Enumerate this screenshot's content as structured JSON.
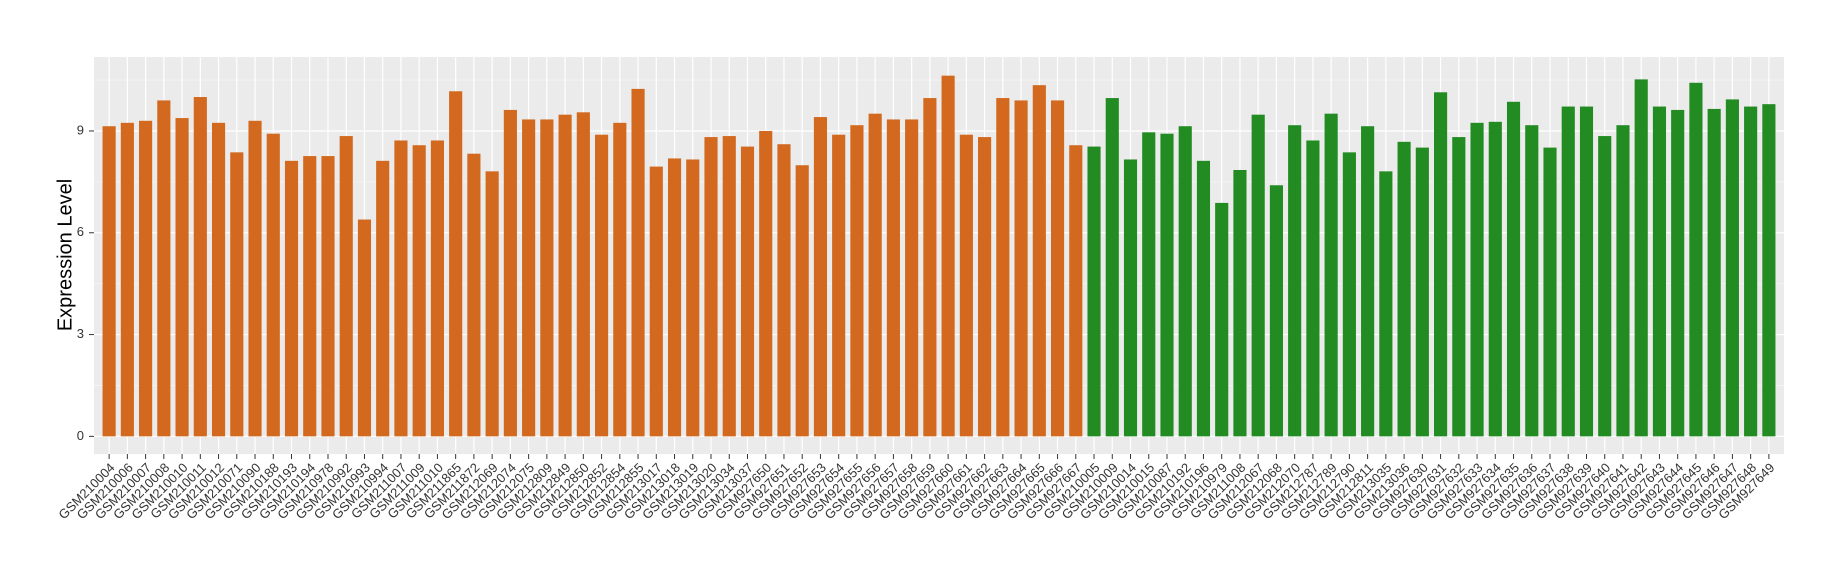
{
  "chart_data": {
    "type": "bar",
    "y_label": "Expression Level",
    "categories": [
      "GSM210004",
      "GSM210006",
      "GSM210007",
      "GSM210008",
      "GSM210010",
      "GSM210011",
      "GSM210012",
      "GSM210071",
      "GSM210090",
      "GSM210188",
      "GSM210193",
      "GSM210194",
      "GSM210978",
      "GSM210992",
      "GSM210993",
      "GSM210994",
      "GSM211007",
      "GSM211009",
      "GSM211010",
      "GSM211865",
      "GSM211872",
      "GSM212069",
      "GSM212074",
      "GSM212075",
      "GSM212809",
      "GSM212849",
      "GSM212850",
      "GSM212852",
      "GSM212854",
      "GSM212855",
      "GSM213017",
      "GSM213018",
      "GSM213019",
      "GSM213020",
      "GSM213034",
      "GSM213037",
      "GSM927650",
      "GSM927651",
      "GSM927652",
      "GSM927653",
      "GSM927654",
      "GSM927655",
      "GSM927656",
      "GSM927657",
      "GSM927658",
      "GSM927659",
      "GSM927660",
      "GSM927661",
      "GSM927662",
      "GSM927663",
      "GSM927664",
      "GSM927665",
      "GSM927666",
      "GSM927667",
      "GSM210005",
      "GSM210009",
      "GSM210014",
      "GSM210015",
      "GSM210087",
      "GSM210192",
      "GSM210196",
      "GSM210979",
      "GSM211008",
      "GSM212067",
      "GSM212068",
      "GSM212070",
      "GSM212787",
      "GSM212789",
      "GSM212790",
      "GSM212811",
      "GSM213035",
      "GSM213036",
      "GSM927630",
      "GSM927631",
      "GSM927632",
      "GSM927633",
      "GSM927634",
      "GSM927635",
      "GSM927636",
      "GSM927637",
      "GSM927638",
      "GSM927639",
      "GSM927640",
      "GSM927641",
      "GSM927642",
      "GSM927643",
      "GSM927644",
      "GSM927645",
      "GSM927646",
      "GSM927647",
      "GSM927648",
      "GSM927649"
    ],
    "values": [
      9.14,
      9.24,
      9.3,
      9.9,
      9.38,
      10.0,
      9.24,
      8.37,
      9.3,
      8.92,
      8.12,
      8.26,
      8.26,
      8.85,
      6.39,
      8.12,
      8.72,
      8.58,
      8.72,
      10.17,
      8.33,
      7.81,
      9.62,
      9.34,
      9.34,
      9.48,
      9.55,
      8.89,
      9.24,
      10.24,
      7.95,
      8.19,
      8.16,
      8.82,
      8.85,
      8.54,
      9.0,
      8.61,
      7.99,
      9.41,
      8.89,
      9.17,
      9.51,
      9.34,
      9.34,
      9.97,
      10.63,
      8.89,
      8.82,
      9.97,
      9.9,
      10.35,
      9.9,
      8.58,
      8.54,
      9.97,
      8.16,
      8.96,
      8.92,
      9.14,
      8.12,
      6.88,
      7.85,
      9.48,
      7.4,
      9.17,
      8.72,
      9.51,
      8.37,
      9.14,
      7.81,
      8.68,
      8.51,
      10.14,
      8.82,
      9.24,
      9.27,
      9.86,
      9.17,
      8.51,
      9.72,
      9.72,
      8.85,
      9.17,
      10.52,
      9.72,
      9.62,
      10.42,
      9.65,
      9.93,
      9.72,
      9.79
    ],
    "colors": [
      "#d2691e",
      "#d2691e",
      "#d2691e",
      "#d2691e",
      "#d2691e",
      "#d2691e",
      "#d2691e",
      "#d2691e",
      "#d2691e",
      "#d2691e",
      "#d2691e",
      "#d2691e",
      "#d2691e",
      "#d2691e",
      "#d2691e",
      "#d2691e",
      "#d2691e",
      "#d2691e",
      "#d2691e",
      "#d2691e",
      "#d2691e",
      "#d2691e",
      "#d2691e",
      "#d2691e",
      "#d2691e",
      "#d2691e",
      "#d2691e",
      "#d2691e",
      "#d2691e",
      "#d2691e",
      "#d2691e",
      "#d2691e",
      "#d2691e",
      "#d2691e",
      "#d2691e",
      "#d2691e",
      "#d2691e",
      "#d2691e",
      "#d2691e",
      "#d2691e",
      "#d2691e",
      "#d2691e",
      "#d2691e",
      "#d2691e",
      "#d2691e",
      "#d2691e",
      "#d2691e",
      "#d2691e",
      "#d2691e",
      "#d2691e",
      "#d2691e",
      "#d2691e",
      "#d2691e",
      "#d2691e",
      "#228b22",
      "#228b22",
      "#228b22",
      "#228b22",
      "#228b22",
      "#228b22",
      "#228b22",
      "#228b22",
      "#228b22",
      "#228b22",
      "#228b22",
      "#228b22",
      "#228b22",
      "#228b22",
      "#228b22",
      "#228b22",
      "#228b22",
      "#228b22",
      "#228b22",
      "#228b22",
      "#228b22",
      "#228b22",
      "#228b22",
      "#228b22",
      "#228b22",
      "#228b22",
      "#228b22",
      "#228b22",
      "#228b22",
      "#228b22",
      "#228b22",
      "#228b22",
      "#228b22",
      "#228b22",
      "#228b22",
      "#228b22",
      "#228b22",
      "#228b22"
    ],
    "ylim": [
      -0.52,
      11.18
    ],
    "yticks": [
      0,
      3,
      6,
      9
    ],
    "grid": true
  }
}
